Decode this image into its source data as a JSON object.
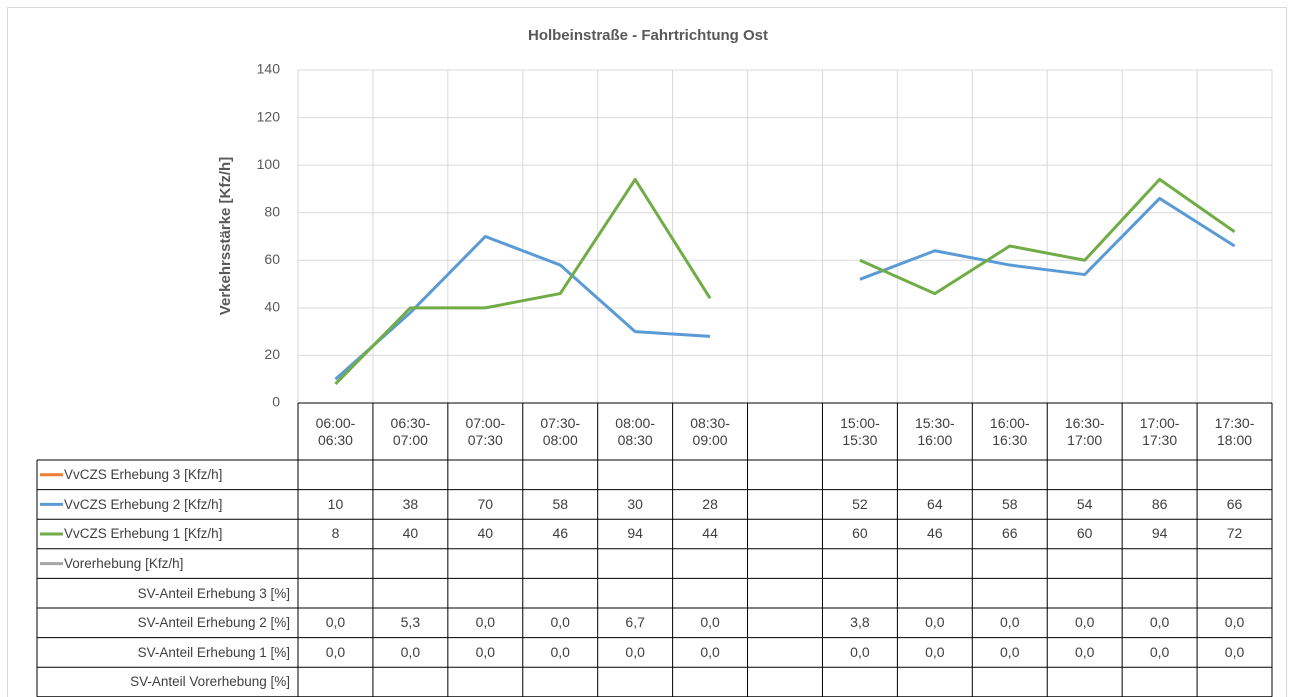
{
  "chart_data": {
    "type": "line",
    "title": "Holbeinstraße - Fahrtrichtung Ost",
    "y_label": "Verkehrsstärke [Kfz/h]",
    "categories": [
      "06:00-06:30",
      "06:30-07:00",
      "07:00-07:30",
      "07:30-08:00",
      "08:00-08:30",
      "08:30-09:00",
      null,
      "15:00-15:30",
      "15:30-16:00",
      "16:00-16:30",
      "16:30-17:00",
      "17:00-17:30",
      "17:30-18:00"
    ],
    "series": [
      {
        "name": "VvCZS Erhebung 3 [Kfz/h]",
        "color": "#ed7d31",
        "values": [
          null,
          null,
          null,
          null,
          null,
          null,
          null,
          null,
          null,
          null,
          null,
          null,
          null
        ]
      },
      {
        "name": "VvCZS Erhebung 2 [Kfz/h]",
        "color": "#5b9bd5",
        "values": [
          10,
          38,
          70,
          58,
          30,
          28,
          null,
          52,
          64,
          58,
          54,
          86,
          66
        ]
      },
      {
        "name": "VvCZS Erhebung 1 [Kfz/h]",
        "color": "#70ad47",
        "values": [
          8,
          40,
          40,
          46,
          94,
          44,
          null,
          60,
          46,
          66,
          60,
          94,
          72
        ]
      },
      {
        "name": "Vorerhebung [Kfz/h]",
        "color": "#a5a5a5",
        "values": [
          null,
          null,
          null,
          null,
          null,
          null,
          null,
          null,
          null,
          null,
          null,
          null,
          null
        ]
      }
    ],
    "table_rows": [
      {
        "name": "SV-Anteil Erhebung 3 [%]",
        "values": [
          null,
          null,
          null,
          null,
          null,
          null,
          null,
          null,
          null,
          null,
          null,
          null,
          null
        ]
      },
      {
        "name": "SV-Anteil Erhebung 2 [%]",
        "values": [
          0,
          5.3,
          0,
          0,
          6.7,
          0,
          null,
          3.8,
          0,
          0,
          0,
          0,
          0
        ],
        "value_labels": [
          "0,0",
          "5,3",
          "0,0",
          "0,0",
          "6,7",
          "0,0",
          null,
          "3,8",
          "0,0",
          "0,0",
          "0,0",
          "0,0",
          "0,0"
        ]
      },
      {
        "name": "SV-Anteil Erhebung 1 [%]",
        "values": [
          0,
          0,
          0,
          0,
          0,
          0,
          null,
          0,
          0,
          0,
          0,
          0,
          0
        ],
        "value_labels": [
          "0,0",
          "0,0",
          "0,0",
          "0,0",
          "0,0",
          "0,0",
          null,
          "0,0",
          "0,0",
          "0,0",
          "0,0",
          "0,0",
          "0,0"
        ]
      },
      {
        "name": "SV-Anteil Vorerhebung [%]",
        "values": [
          null,
          null,
          null,
          null,
          null,
          null,
          null,
          null,
          null,
          null,
          null,
          null,
          null
        ]
      }
    ],
    "ylim": [
      0,
      140
    ],
    "yticks": [
      0,
      20,
      40,
      60,
      80,
      100,
      120,
      140
    ],
    "grid": true
  }
}
